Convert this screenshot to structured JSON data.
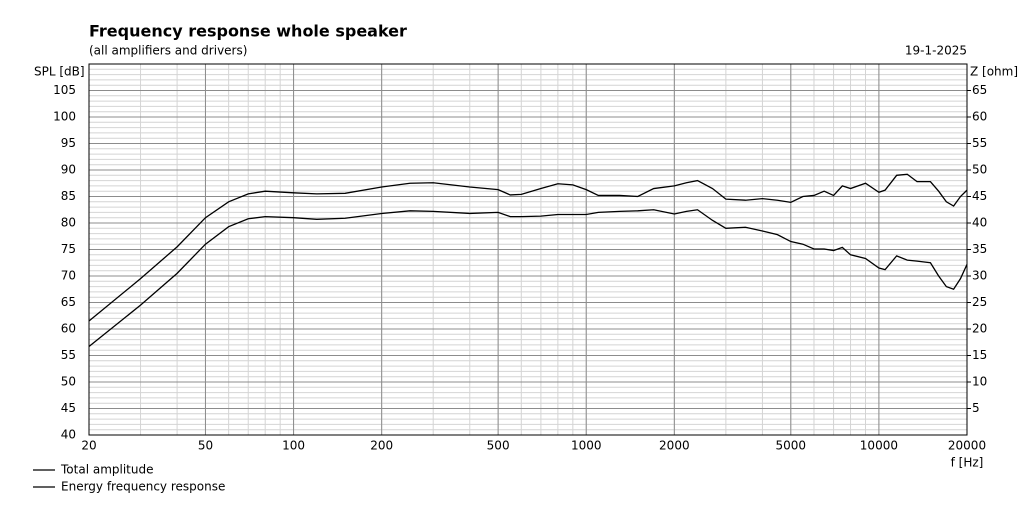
{
  "chart_data": {
    "type": "line",
    "title": "Frequency response whole speaker",
    "subtitle": "(all amplifiers and drivers)",
    "date": "19-1-2025",
    "y_label": "SPL [dB]",
    "y2_label": "Z [ohm]",
    "x_label": "f [Hz]",
    "x_log": true,
    "x": [
      20,
      30,
      40,
      50,
      60,
      70,
      80,
      100,
      120,
      150,
      200,
      250,
      300,
      400,
      500,
      550,
      600,
      700,
      800,
      900,
      1000,
      1100,
      1300,
      1500,
      1700,
      2000,
      2200,
      2400,
      2700,
      3000,
      3500,
      4000,
      4500,
      5000,
      5500,
      6000,
      6500,
      7000,
      7500,
      8000,
      9000,
      10000,
      10500,
      11500,
      12500,
      13500,
      15000,
      16000,
      17000,
      18000,
      19000,
      20000
    ],
    "series": [
      {
        "name": "Total amplitude",
        "color": "#000000",
        "values": [
          61.5,
          69.5,
          75.5,
          81,
          84,
          85.5,
          86,
          85.7,
          85.5,
          85.6,
          86.8,
          87.5,
          87.6,
          86.8,
          86.3,
          85.3,
          85.4,
          86.5,
          87.4,
          87.2,
          86.3,
          85.2,
          85.2,
          85,
          86.5,
          87,
          87.6,
          88,
          86.5,
          84.5,
          84.3,
          84.6,
          84.3,
          83.9,
          85,
          85.2,
          86,
          85.2,
          87,
          86.5,
          87.5,
          85.8,
          86.2,
          89,
          89.2,
          87.8,
          87.8,
          86,
          84,
          83.2,
          85,
          86.2
        ]
      },
      {
        "name": "Energy frequency response",
        "color": "#000000",
        "values": [
          56.7,
          64.5,
          70.5,
          76,
          79.3,
          80.8,
          81.2,
          81,
          80.7,
          80.9,
          81.8,
          82.3,
          82.2,
          81.8,
          82,
          81.2,
          81.2,
          81.3,
          81.6,
          81.6,
          81.6,
          82,
          82.2,
          82.3,
          82.5,
          81.7,
          82.2,
          82.5,
          80.5,
          79,
          79.2,
          78.5,
          77.8,
          76.5,
          76,
          75.1,
          75.1,
          74.8,
          75.4,
          74,
          73.3,
          71.5,
          71.2,
          73.8,
          73,
          72.8,
          72.5,
          70,
          68,
          67.5,
          69.5,
          72.2
        ]
      }
    ],
    "xlim": [
      20,
      20000
    ],
    "xticks": [
      20,
      50,
      100,
      200,
      500,
      1000,
      2000,
      5000,
      10000,
      20000
    ],
    "ylim": [
      40,
      110
    ],
    "yticks": [
      40,
      45,
      50,
      55,
      60,
      65,
      70,
      75,
      80,
      85,
      90,
      95,
      100,
      105
    ],
    "y2lim": [
      0,
      70
    ],
    "y2ticks": [
      5,
      10,
      15,
      20,
      25,
      30,
      35,
      40,
      45,
      50,
      55,
      60,
      65
    ],
    "grid": true,
    "legend": "bottom-left"
  }
}
